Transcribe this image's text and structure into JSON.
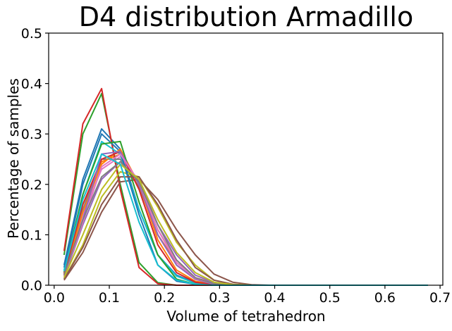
{
  "chart_data": {
    "type": "line",
    "title": "D4 distribution Armadillo",
    "xlabel": "Volume of tetrahedron",
    "ylabel": "Percentage of samples",
    "xlim": [
      -0.01,
      0.705
    ],
    "ylim": [
      0.0,
      0.5
    ],
    "xticks": [
      "0.0",
      "0.1",
      "0.2",
      "0.3",
      "0.4",
      "0.5",
      "0.6",
      "0.7"
    ],
    "yticks": [
      "0.0",
      "0.1",
      "0.2",
      "0.3",
      "0.4",
      "0.5"
    ],
    "grid": false,
    "legend": false,
    "x": [
      0.018,
      0.052,
      0.086,
      0.12,
      0.154,
      0.188,
      0.222,
      0.256,
      0.29,
      0.324,
      0.358,
      0.392,
      0.426,
      0.46,
      0.494,
      0.528,
      0.562,
      0.596,
      0.63,
      0.664,
      0.678
    ],
    "series": [
      {
        "color": "#1f77b4",
        "values": [
          0.04,
          0.21,
          0.31,
          0.27,
          0.15,
          0.06,
          0.02,
          0.005,
          0.001,
          0,
          0,
          0,
          0,
          0,
          0,
          0,
          0,
          0,
          0,
          0,
          0
        ]
      },
      {
        "color": "#ff7f0e",
        "values": [
          0.02,
          0.16,
          0.245,
          0.26,
          0.2,
          0.1,
          0.045,
          0.015,
          0.004,
          0.001,
          0,
          0,
          0,
          0,
          0,
          0,
          0,
          0,
          0,
          0,
          0
        ]
      },
      {
        "color": "#2ca02c",
        "values": [
          0.06,
          0.3,
          0.38,
          0.2,
          0.045,
          0.005,
          0,
          0,
          0,
          0,
          0,
          0,
          0,
          0,
          0,
          0,
          0,
          0,
          0,
          0,
          0
        ]
      },
      {
        "color": "#d62728",
        "values": [
          0.068,
          0.32,
          0.39,
          0.19,
          0.035,
          0.003,
          0,
          0,
          0,
          0,
          0,
          0,
          0,
          0,
          0,
          0,
          0,
          0,
          0,
          0,
          0
        ]
      },
      {
        "color": "#9467bd",
        "values": [
          0.015,
          0.12,
          0.21,
          0.245,
          0.21,
          0.12,
          0.06,
          0.02,
          0.005,
          0.001,
          0,
          0,
          0,
          0,
          0,
          0,
          0,
          0,
          0,
          0,
          0
        ]
      },
      {
        "color": "#8c564b",
        "values": [
          0.01,
          0.065,
          0.145,
          0.205,
          0.21,
          0.17,
          0.11,
          0.06,
          0.022,
          0.006,
          0.001,
          0,
          0,
          0,
          0,
          0,
          0,
          0,
          0,
          0,
          0
        ]
      },
      {
        "color": "#e377c2",
        "values": [
          0.02,
          0.14,
          0.23,
          0.255,
          0.205,
          0.11,
          0.05,
          0.015,
          0.003,
          0.001,
          0,
          0,
          0,
          0,
          0,
          0,
          0,
          0,
          0,
          0,
          0
        ]
      },
      {
        "color": "#7f7f7f",
        "values": [
          0.025,
          0.15,
          0.25,
          0.25,
          0.195,
          0.1,
          0.04,
          0.012,
          0.002,
          0,
          0,
          0,
          0,
          0,
          0,
          0,
          0,
          0,
          0,
          0,
          0
        ]
      },
      {
        "color": "#bcbd22",
        "values": [
          0.012,
          0.08,
          0.175,
          0.225,
          0.215,
          0.155,
          0.085,
          0.04,
          0.01,
          0.002,
          0,
          0,
          0,
          0,
          0,
          0,
          0,
          0,
          0,
          0,
          0
        ]
      },
      {
        "color": "#17becf",
        "values": [
          0.03,
          0.18,
          0.285,
          0.26,
          0.15,
          0.06,
          0.018,
          0.004,
          0,
          0,
          0,
          0,
          0,
          0,
          0,
          0,
          0,
          0,
          0,
          0,
          0
        ]
      },
      {
        "color": "#1f77b4",
        "values": [
          0.035,
          0.2,
          0.3,
          0.265,
          0.14,
          0.04,
          0.008,
          0.002,
          0,
          0,
          0,
          0,
          0,
          0,
          0,
          0,
          0,
          0,
          0,
          0,
          0
        ]
      },
      {
        "color": "#ff7f0e",
        "values": [
          0.018,
          0.145,
          0.24,
          0.27,
          0.2,
          0.09,
          0.03,
          0.008,
          0.002,
          0,
          0,
          0,
          0,
          0,
          0,
          0,
          0,
          0,
          0,
          0,
          0
        ]
      },
      {
        "color": "#2ca02c",
        "values": [
          0.025,
          0.18,
          0.28,
          0.285,
          0.165,
          0.06,
          0.012,
          0.002,
          0,
          0,
          0,
          0,
          0,
          0,
          0,
          0,
          0,
          0,
          0,
          0,
          0
        ]
      },
      {
        "color": "#d62728",
        "values": [
          0.022,
          0.16,
          0.25,
          0.265,
          0.19,
          0.08,
          0.025,
          0.006,
          0.001,
          0,
          0,
          0,
          0,
          0,
          0,
          0,
          0,
          0,
          0,
          0,
          0
        ]
      },
      {
        "color": "#9467bd",
        "values": [
          0.02,
          0.13,
          0.26,
          0.265,
          0.2,
          0.1,
          0.04,
          0.012,
          0.002,
          0,
          0,
          0,
          0,
          0,
          0,
          0,
          0,
          0,
          0,
          0,
          0
        ]
      },
      {
        "color": "#8c564b",
        "values": [
          0.012,
          0.075,
          0.16,
          0.215,
          0.215,
          0.16,
          0.09,
          0.035,
          0.01,
          0.002,
          0,
          0,
          0,
          0,
          0,
          0,
          0,
          0,
          0,
          0,
          0
        ]
      },
      {
        "color": "#e377c2",
        "values": [
          0.018,
          0.125,
          0.235,
          0.26,
          0.205,
          0.11,
          0.045,
          0.014,
          0.003,
          0,
          0,
          0,
          0,
          0,
          0,
          0,
          0,
          0,
          0,
          0,
          0
        ]
      },
      {
        "color": "#7f7f7f",
        "values": [
          0.02,
          0.13,
          0.215,
          0.245,
          0.205,
          0.12,
          0.05,
          0.015,
          0.003,
          0,
          0,
          0,
          0,
          0,
          0,
          0,
          0,
          0,
          0,
          0,
          0
        ]
      },
      {
        "color": "#bcbd22",
        "values": [
          0.015,
          0.1,
          0.19,
          0.24,
          0.21,
          0.13,
          0.065,
          0.025,
          0.006,
          0.001,
          0,
          0,
          0,
          0,
          0,
          0,
          0,
          0,
          0,
          0,
          0
        ]
      },
      {
        "color": "#17becf",
        "values": [
          0.028,
          0.17,
          0.26,
          0.24,
          0.125,
          0.04,
          0.01,
          0.002,
          0,
          0,
          0,
          0,
          0,
          0,
          0,
          0,
          0,
          0,
          0,
          0,
          0
        ]
      }
    ]
  }
}
